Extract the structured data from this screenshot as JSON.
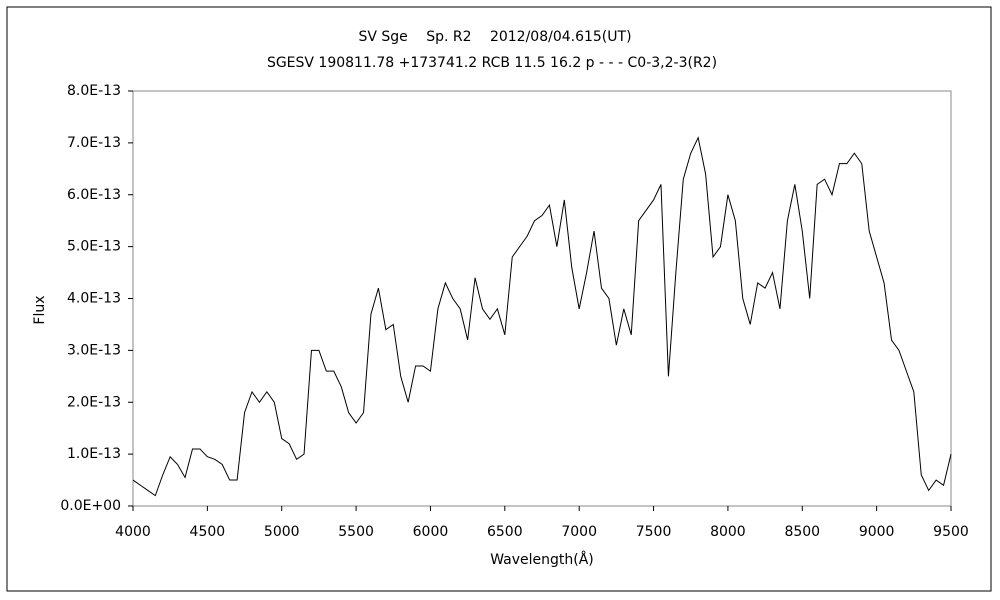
{
  "chart_data": {
    "type": "line",
    "title": "SV Sge　 Sp. R2　 2012/08/04.615(UT)",
    "subtitle": "SGESV 190811.78 +173741.2 RCB 11.5 16.2 p - - - C0-3,2-3(R2)",
    "x_label": "Wavelength(Å)",
    "y_label": "Flux",
    "color": "#000000",
    "xlim": [
      4000,
      9500
    ],
    "xticks": [
      4000,
      4500,
      5000,
      5500,
      6000,
      6500,
      7000,
      7500,
      8000,
      8500,
      9000,
      9500
    ],
    "ylim": [
      0,
      8e-13
    ],
    "yticks": [
      {
        "value": 0,
        "label": "0.0E+00"
      },
      {
        "value": 1e-13,
        "label": "1.0E-13"
      },
      {
        "value": 2e-13,
        "label": "2.0E-13"
      },
      {
        "value": 3e-13,
        "label": "3.0E-13"
      },
      {
        "value": 4e-13,
        "label": "4.0E-13"
      },
      {
        "value": 5e-13,
        "label": "5.0E-13"
      },
      {
        "value": 6e-13,
        "label": "6.0E-13"
      },
      {
        "value": 7e-13,
        "label": "7.0E-13"
      },
      {
        "value": 8e-13,
        "label": "8.0E-13"
      }
    ],
    "grid": false,
    "x": [
      4000,
      4050,
      4100,
      4150,
      4200,
      4250,
      4300,
      4350,
      4400,
      4450,
      4500,
      4550,
      4600,
      4650,
      4700,
      4750,
      4800,
      4850,
      4900,
      4950,
      5000,
      5050,
      5100,
      5150,
      5200,
      5250,
      5300,
      5350,
      5400,
      5450,
      5500,
      5550,
      5600,
      5650,
      5700,
      5750,
      5800,
      5850,
      5900,
      5950,
      6000,
      6050,
      6100,
      6150,
      6200,
      6250,
      6300,
      6350,
      6400,
      6450,
      6500,
      6550,
      6600,
      6650,
      6700,
      6750,
      6800,
      6850,
      6900,
      6950,
      7000,
      7050,
      7100,
      7150,
      7200,
      7250,
      7300,
      7350,
      7400,
      7450,
      7500,
      7550,
      7600,
      7650,
      7700,
      7750,
      7800,
      7850,
      7900,
      7950,
      8000,
      8050,
      8100,
      8150,
      8200,
      8250,
      8300,
      8350,
      8400,
      8450,
      8500,
      8550,
      8600,
      8650,
      8700,
      8750,
      8800,
      8850,
      8900,
      8950,
      9000,
      9050,
      9100,
      9150,
      9200,
      9250,
      9300,
      9350,
      9400,
      9450,
      9500
    ],
    "values": [
      5e-14,
      4e-14,
      3e-14,
      2e-14,
      6e-14,
      9.5e-14,
      8e-14,
      5.5e-14,
      1.1e-13,
      1.1e-13,
      9.5e-14,
      9e-14,
      8e-14,
      5e-14,
      5e-14,
      1.8e-13,
      2.2e-13,
      2e-13,
      2.2e-13,
      2e-13,
      1.3e-13,
      1.2e-13,
      9e-14,
      1e-13,
      3e-13,
      3e-13,
      2.6e-13,
      2.6e-13,
      2.3e-13,
      1.8e-13,
      1.6e-13,
      1.8e-13,
      3.7e-13,
      4.2e-13,
      3.4e-13,
      3.5e-13,
      2.5e-13,
      2e-13,
      2.7e-13,
      2.7e-13,
      2.6e-13,
      3.8e-13,
      4.3e-13,
      4e-13,
      3.8e-13,
      3.2e-13,
      4.4e-13,
      3.8e-13,
      3.6e-13,
      3.8e-13,
      3.3e-13,
      4.8e-13,
      5e-13,
      5.2e-13,
      5.5e-13,
      5.6e-13,
      5.8e-13,
      5e-13,
      5.9e-13,
      4.6e-13,
      3.8e-13,
      4.5e-13,
      5.3e-13,
      4.2e-13,
      4e-13,
      3.1e-13,
      3.8e-13,
      3.3e-13,
      5.5e-13,
      5.7e-13,
      5.9e-13,
      6.2e-13,
      2.5e-13,
      4.5e-13,
      6.3e-13,
      6.8e-13,
      7.1e-13,
      6.4e-13,
      4.8e-13,
      5e-13,
      6e-13,
      5.5e-13,
      4e-13,
      3.5e-13,
      4.3e-13,
      4.2e-13,
      4.5e-13,
      3.8e-13,
      5.5e-13,
      6.2e-13,
      5.3e-13,
      4e-13,
      6.2e-13,
      6.3e-13,
      6e-13,
      6.6e-13,
      6.6e-13,
      6.8e-13,
      6.6e-13,
      5.3e-13,
      4.8e-13,
      4.3e-13,
      3.2e-13,
      3e-13,
      2.6e-13,
      2.2e-13,
      6e-14,
      3e-14,
      5e-14,
      4e-14,
      1e-13
    ]
  }
}
